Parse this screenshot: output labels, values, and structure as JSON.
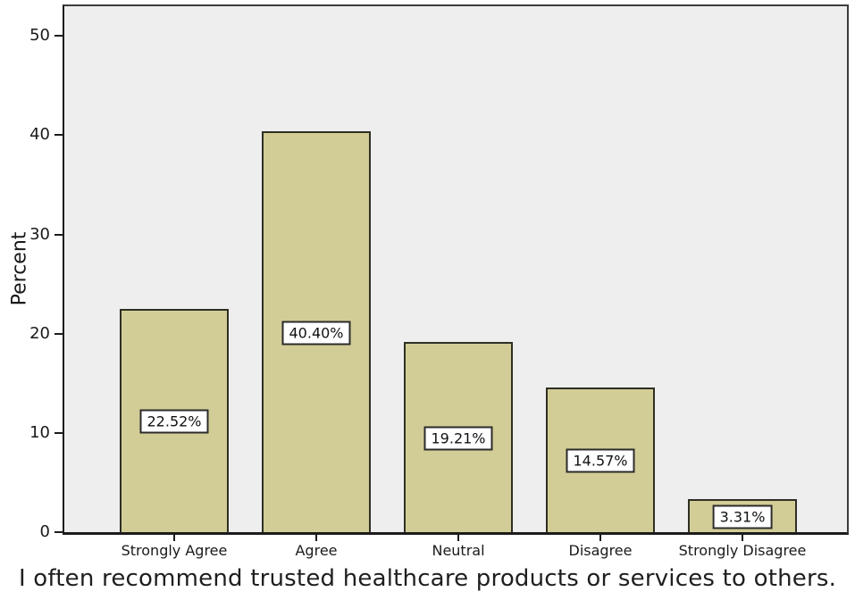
{
  "chart_data": {
    "type": "bar",
    "categories": [
      "Strongly Agree",
      "Agree",
      "Neutral",
      "Disagree",
      "Strongly Disagree"
    ],
    "values": [
      22.52,
      40.4,
      19.21,
      14.57,
      3.31
    ],
    "value_labels": [
      "22.52%",
      "40.40%",
      "19.21%",
      "14.57%",
      "3.31%"
    ],
    "ylabel": "Percent",
    "xlabel": "I often recommend trusted healthcare products or services to others.",
    "yticks": [
      0,
      10,
      20,
      30,
      40,
      50
    ],
    "ylim": [
      0,
      53
    ],
    "grid": false,
    "legend": false,
    "colors": {
      "bar_fill": "#d2cd96",
      "bar_border": "#2e2e24",
      "plot_background": "#eeeeee",
      "frame": "#3c3c3c",
      "axis": "#1c1c1c",
      "text": "#1a1a1a",
      "value_box_background": "#ffffff",
      "value_box_border": "#2b2b2b"
    }
  }
}
